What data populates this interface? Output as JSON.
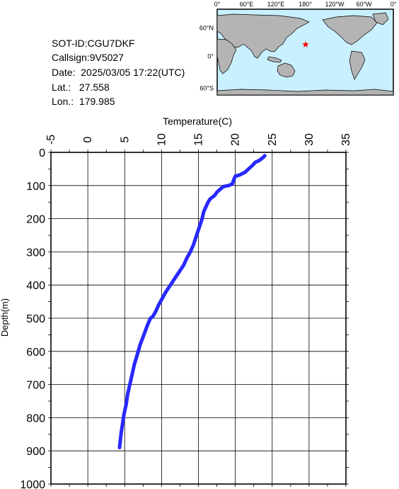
{
  "info": {
    "sot_id": "SOT-ID:CGU7DKF",
    "callsign": "Callsign:9V5027",
    "date": "Date:  2025/03/05 17:22(UTC)",
    "lat": "Lat.:   27.558",
    "lon": "Lon.:  179.985"
  },
  "map": {
    "top_ticks": [
      "0°",
      "60°E",
      "120°E",
      "180°",
      "120°W",
      "60°W",
      "0°"
    ],
    "left_ticks": [
      "60°N",
      "0°",
      "60°S"
    ],
    "marker": "station-star",
    "ocean_color": "#c8f0ff",
    "land_color": "#b4b4b4",
    "marker_color": "#ff0000"
  },
  "chart_data": {
    "type": "line",
    "title": "",
    "xlabel": "Temperature(C)",
    "ylabel": "Depth(m)",
    "xlim": [
      -5,
      35
    ],
    "ylim": [
      0,
      1000
    ],
    "y_inverted": true,
    "x_axis_position": "top",
    "grid": true,
    "x_ticks": [
      "-5",
      "0",
      "5",
      "10",
      "15",
      "20",
      "25",
      "30",
      "35"
    ],
    "y_ticks": [
      "0",
      "100",
      "200",
      "300",
      "400",
      "500",
      "600",
      "700",
      "800",
      "900",
      "1000"
    ],
    "series": [
      {
        "color": "#2828ff",
        "points": [
          [
            24.0,
            10
          ],
          [
            23.8,
            15
          ],
          [
            23.5,
            20
          ],
          [
            23.2,
            25
          ],
          [
            22.7,
            30
          ],
          [
            22.3,
            40
          ],
          [
            21.8,
            50
          ],
          [
            21.3,
            60
          ],
          [
            20.6,
            68
          ],
          [
            20.0,
            72
          ],
          [
            19.8,
            82
          ],
          [
            19.6,
            95
          ],
          [
            19.1,
            100
          ],
          [
            18.4,
            103
          ],
          [
            18.0,
            110
          ],
          [
            17.5,
            120
          ],
          [
            17.2,
            130
          ],
          [
            16.9,
            135
          ],
          [
            16.6,
            140
          ],
          [
            16.3,
            150
          ],
          [
            16.0,
            165
          ],
          [
            15.7,
            180
          ],
          [
            15.5,
            200
          ],
          [
            15.2,
            220
          ],
          [
            14.9,
            240
          ],
          [
            14.6,
            260
          ],
          [
            14.3,
            280
          ],
          [
            13.9,
            300
          ],
          [
            13.4,
            320
          ],
          [
            13.0,
            340
          ],
          [
            12.4,
            360
          ],
          [
            11.8,
            380
          ],
          [
            11.2,
            400
          ],
          [
            10.6,
            420
          ],
          [
            10.1,
            440
          ],
          [
            9.6,
            460
          ],
          [
            9.2,
            480
          ],
          [
            8.8,
            495
          ],
          [
            8.5,
            500
          ],
          [
            8.1,
            520
          ],
          [
            7.6,
            550
          ],
          [
            7.1,
            580
          ],
          [
            6.7,
            610
          ],
          [
            6.3,
            640
          ],
          [
            6.0,
            670
          ],
          [
            5.7,
            700
          ],
          [
            5.4,
            730
          ],
          [
            5.2,
            760
          ],
          [
            4.9,
            790
          ],
          [
            4.7,
            820
          ],
          [
            4.5,
            850
          ],
          [
            4.4,
            870
          ],
          [
            4.3,
            890
          ]
        ]
      }
    ]
  }
}
